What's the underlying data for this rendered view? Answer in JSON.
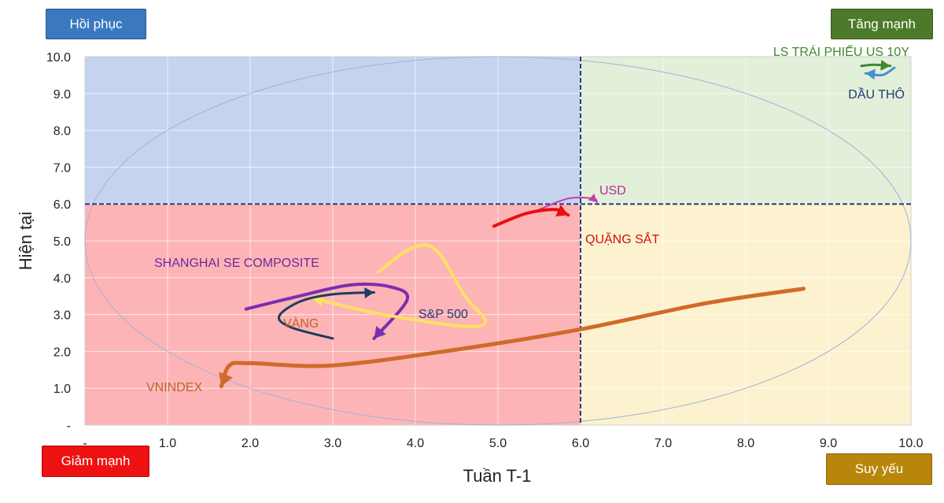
{
  "badges": {
    "top_left": {
      "label": "Hồi phục",
      "color": "#3a78c0"
    },
    "top_right": {
      "label": "Tăng mạnh",
      "color": "#4d7a2a"
    },
    "bottom_left": {
      "label": "Giảm mạnh",
      "color": "#ee1111"
    },
    "bottom_right": {
      "label": "Suy yếu",
      "color": "#b8860b"
    }
  },
  "chart_data": {
    "type": "line",
    "title": "",
    "xlabel": "Tuần T-1",
    "ylabel": "Hiện tại",
    "xlim": [
      0,
      10
    ],
    "ylim": [
      0,
      10
    ],
    "x_ticks": [
      "-",
      "1.0",
      "2.0",
      "3.0",
      "4.0",
      "5.0",
      "6.0",
      "7.0",
      "8.0",
      "9.0",
      "10.0"
    ],
    "y_ticks": [
      "-",
      "1.0",
      "2.0",
      "3.0",
      "4.0",
      "5.0",
      "6.0",
      "7.0",
      "8.0",
      "9.0",
      "10.0"
    ],
    "grid": true,
    "quadrants": {
      "split_x": 6,
      "split_y": 6,
      "top_left_color": "#c6d3ee",
      "top_right_color": "#e2efd9",
      "bottom_left_color": "#fdb4b6",
      "bottom_right_color": "#fdf2cf"
    },
    "series": [
      {
        "name": "VNINDEX",
        "color": "#d06a2a",
        "width": 5,
        "label_color": "#c0622a",
        "points": [
          [
            8.7,
            3.7
          ],
          [
            7.5,
            3.3
          ],
          [
            6.0,
            2.6
          ],
          [
            4.5,
            2.05
          ],
          [
            3.0,
            1.62
          ],
          [
            2.0,
            1.68
          ],
          [
            1.75,
            1.62
          ],
          [
            1.65,
            1.05
          ]
        ]
      },
      {
        "name": "SHANGHAI SE COMPOSITE",
        "color": "#7a2fb0",
        "width": 4,
        "label_color": "#6a2aa0",
        "points": [
          [
            1.95,
            3.15
          ],
          [
            2.5,
            3.45
          ],
          [
            3.2,
            3.8
          ],
          [
            3.7,
            3.75
          ],
          [
            3.9,
            3.4
          ],
          [
            3.5,
            2.35
          ]
        ]
      },
      {
        "name": "S&P 500",
        "color": "#ffe066",
        "width": 4,
        "label_color": "#1f3a70",
        "points": [
          [
            3.55,
            4.15
          ],
          [
            3.95,
            4.8
          ],
          [
            4.25,
            4.75
          ],
          [
            4.6,
            3.5
          ],
          [
            4.85,
            2.8
          ],
          [
            4.5,
            2.7
          ],
          [
            3.5,
            3.05
          ],
          [
            2.75,
            3.45
          ]
        ]
      },
      {
        "name": "VÀNG",
        "color": "#1f3b60",
        "width": 3,
        "label_color": "#c0622a",
        "points": [
          [
            3.0,
            2.35
          ],
          [
            2.5,
            2.65
          ],
          [
            2.35,
            2.95
          ],
          [
            2.6,
            3.35
          ],
          [
            3.0,
            3.55
          ],
          [
            3.5,
            3.6
          ]
        ]
      },
      {
        "name": "USD",
        "color": "#c040b0",
        "width": 2,
        "label_color": "#b0309c",
        "points": [
          [
            5.5,
            5.85
          ],
          [
            5.85,
            6.15
          ],
          [
            6.15,
            6.15
          ],
          [
            6.2,
            6.05
          ]
        ]
      },
      {
        "name": "QUẶNG SẮT",
        "color": "#e81010",
        "width": 4,
        "label_color": "#d01010",
        "points": [
          [
            4.95,
            5.4
          ],
          [
            5.35,
            5.75
          ],
          [
            5.7,
            5.85
          ],
          [
            5.85,
            5.7
          ]
        ]
      },
      {
        "name": "LS TRÁI PHIẾU US 10Y",
        "color": "#3d8a2a",
        "width": 3,
        "label_color": "#3d8a2a",
        "points": [
          [
            9.4,
            9.75
          ],
          [
            9.55,
            9.78
          ],
          [
            9.75,
            9.75
          ]
        ]
      },
      {
        "name": "DẦU THÔ",
        "color": "#4a8fd0",
        "width": 3,
        "label_color": "#1f3a70",
        "points": [
          [
            9.8,
            9.7
          ],
          [
            9.65,
            9.5
          ],
          [
            9.45,
            9.55
          ]
        ]
      }
    ]
  }
}
